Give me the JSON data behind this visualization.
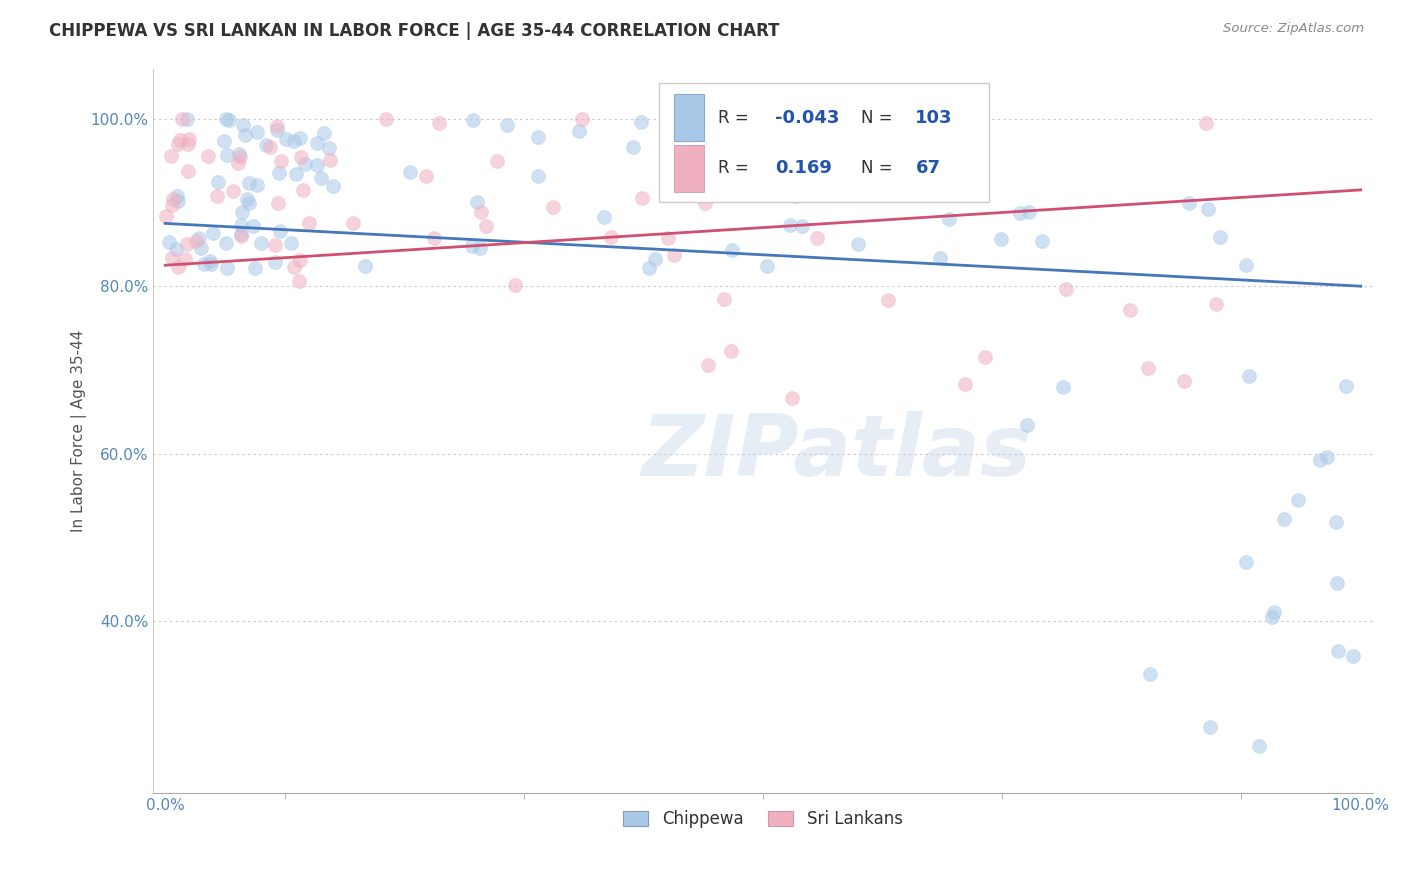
{
  "title": "CHIPPEWA VS SRI LANKAN IN LABOR FORCE | AGE 35-44 CORRELATION CHART",
  "source": "Source: ZipAtlas.com",
  "ylabel": "In Labor Force | Age 35-44",
  "chippewa_R": -0.043,
  "chippewa_N": 103,
  "srilanka_R": 0.169,
  "srilanka_N": 67,
  "chippewa_color": "#a8c8e8",
  "srilanka_color": "#f0b0c0",
  "chippewa_line_color": "#4478b8",
  "srilanka_line_color": "#d05070",
  "marker_size": 100,
  "marker_alpha": 0.55,
  "background_color": "#ffffff",
  "grid_color": "#c8c8c8",
  "title_color": "#333333",
  "tick_color": "#5588bb",
  "watermark": "ZIPatlas",
  "legend_R_color": "#2255aa",
  "legend_text_color": "#333333"
}
